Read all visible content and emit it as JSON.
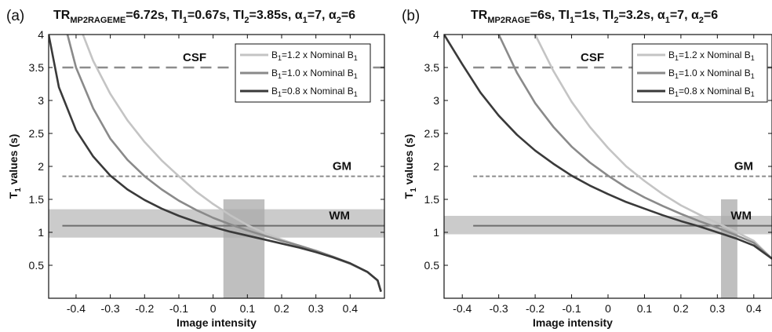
{
  "chart_data": [
    {
      "type": "line",
      "panel": "(a)",
      "title": "TR_MP2RAGEME=6.72s, TI1=0.67s, TI2=3.85s, α1=7, α2=6",
      "title_parts": [
        {
          "t": "TR",
          "sub": false
        },
        {
          "t": "MP2RAGEME",
          "sub": true
        },
        {
          "t": "=6.72s, TI",
          "sub": false
        },
        {
          "t": "1",
          "sub": true
        },
        {
          "t": "=0.67s, TI",
          "sub": false
        },
        {
          "t": "2",
          "sub": true
        },
        {
          "t": "=3.85s, α",
          "sub": false
        },
        {
          "t": "1",
          "sub": true
        },
        {
          "t": "=7, α",
          "sub": false
        },
        {
          "t": "2",
          "sub": true
        },
        {
          "t": "=6",
          "sub": false
        }
      ],
      "xlabel": "Image intensity",
      "ylabel": "T1 values (s)",
      "xlim": [
        -0.48,
        0.5
      ],
      "ylim": [
        0,
        4
      ],
      "xticks": [
        "-0.4",
        "-0.3",
        "-0.2",
        "-0.1",
        "0",
        "0.1",
        "0.2",
        "0.3",
        "0.4"
      ],
      "xtick_values": [
        -0.4,
        -0.3,
        -0.2,
        -0.1,
        0,
        0.1,
        0.2,
        0.3,
        0.4
      ],
      "yticks": [
        "0.5",
        "1",
        "1.5",
        "2",
        "2.5",
        "3",
        "3.5",
        "4"
      ],
      "ytick_values": [
        0.5,
        1,
        1.5,
        2,
        2.5,
        3,
        3.5,
        4
      ],
      "legend_position": "top-right",
      "series": [
        {
          "name": "B1=1.2 x Nominal B1",
          "color": "#c4c4c4",
          "x": [
            -0.38,
            -0.35,
            -0.3,
            -0.25,
            -0.2,
            -0.15,
            -0.1,
            -0.05,
            0,
            0.05,
            0.1,
            0.15,
            0.2,
            0.25,
            0.3,
            0.35,
            0.4,
            0.45,
            0.48,
            0.49
          ],
          "y": [
            4.0,
            3.6,
            3.1,
            2.7,
            2.37,
            2.09,
            1.85,
            1.62,
            1.43,
            1.26,
            1.11,
            0.99,
            0.89,
            0.8,
            0.71,
            0.62,
            0.52,
            0.4,
            0.27,
            0.1
          ]
        },
        {
          "name": "B1=1.0 x Nominal B1",
          "color": "#8a8a8a",
          "x": [
            -0.425,
            -0.4,
            -0.35,
            -0.3,
            -0.25,
            -0.2,
            -0.15,
            -0.1,
            -0.05,
            0,
            0.05,
            0.1,
            0.15,
            0.2,
            0.25,
            0.3,
            0.35,
            0.4,
            0.45,
            0.48,
            0.49
          ],
          "y": [
            4.0,
            3.5,
            2.88,
            2.42,
            2.1,
            1.85,
            1.65,
            1.48,
            1.34,
            1.22,
            1.12,
            1.03,
            0.95,
            0.87,
            0.8,
            0.72,
            0.63,
            0.53,
            0.4,
            0.27,
            0.1
          ]
        },
        {
          "name": "B1=0.8 x Nominal B1",
          "color": "#3a3a3a",
          "x": [
            -0.48,
            -0.45,
            -0.4,
            -0.35,
            -0.3,
            -0.25,
            -0.2,
            -0.15,
            -0.1,
            -0.05,
            0,
            0.05,
            0.1,
            0.15,
            0.2,
            0.25,
            0.3,
            0.35,
            0.4,
            0.45,
            0.48,
            0.49
          ],
          "y": [
            4.0,
            3.2,
            2.55,
            2.15,
            1.86,
            1.65,
            1.49,
            1.36,
            1.25,
            1.16,
            1.08,
            1.01,
            0.95,
            0.89,
            0.83,
            0.77,
            0.7,
            0.62,
            0.53,
            0.4,
            0.27,
            0.1
          ]
        }
      ],
      "reference_lines": [
        {
          "label": "CSF",
          "y": 3.5,
          "x_start": -0.44,
          "style": "dashed",
          "color": "#8c8c8c"
        },
        {
          "label": "GM",
          "y": 1.85,
          "x_start": -0.44,
          "style": "dashed",
          "color": "#8c8c8c"
        },
        {
          "label": "WM",
          "y": 1.1,
          "x_start": -0.44,
          "style": "solid",
          "color": "#6e6e6e"
        }
      ],
      "shaded_bands": [
        {
          "orientation": "horizontal",
          "from": 0.92,
          "to": 1.35
        },
        {
          "orientation": "vertical",
          "from": 0.03,
          "to": 0.15
        }
      ]
    },
    {
      "type": "line",
      "panel": "(b)",
      "title": "TR_MP2RAGE=6s, TI1=1s, TI2=3.2s, α1=7, α2=6",
      "title_parts": [
        {
          "t": "TR",
          "sub": false
        },
        {
          "t": "MP2RAGE",
          "sub": true
        },
        {
          "t": "=6s, TI",
          "sub": false
        },
        {
          "t": "1",
          "sub": true
        },
        {
          "t": "=1s, TI",
          "sub": false
        },
        {
          "t": "2",
          "sub": true
        },
        {
          "t": "=3.2s, α",
          "sub": false
        },
        {
          "t": "1",
          "sub": true
        },
        {
          "t": "=7, α",
          "sub": false
        },
        {
          "t": "2",
          "sub": true
        },
        {
          "t": "=6",
          "sub": false
        }
      ],
      "xlabel": "Image intensity",
      "ylabel": "T1 values (s)",
      "xlim": [
        -0.45,
        0.45
      ],
      "ylim": [
        0,
        4
      ],
      "xticks": [
        "-0.4",
        "-0.3",
        "-0.2",
        "-0.1",
        "0",
        "0.1",
        "0.2",
        "0.3",
        "0.4"
      ],
      "xtick_values": [
        -0.4,
        -0.3,
        -0.2,
        -0.1,
        0,
        0.1,
        0.2,
        0.3,
        0.4
      ],
      "yticks": [
        "0.5",
        "1",
        "1.5",
        "2",
        "2.5",
        "3",
        "3.5",
        "4"
      ],
      "ytick_values": [
        0.5,
        1,
        1.5,
        2,
        2.5,
        3,
        3.5,
        4
      ],
      "legend_position": "top-right",
      "series": [
        {
          "name": "B1=1.2 x Nominal B1",
          "color": "#c4c4c4",
          "x": [
            -0.2,
            -0.15,
            -0.1,
            -0.05,
            0,
            0.05,
            0.1,
            0.15,
            0.2,
            0.25,
            0.3,
            0.35,
            0.4,
            0.45
          ],
          "y": [
            4.0,
            3.45,
            2.98,
            2.6,
            2.28,
            2.0,
            1.78,
            1.58,
            1.41,
            1.27,
            1.14,
            1.01,
            0.87,
            0.6
          ]
        },
        {
          "name": "B1=1.0 x Nominal B1",
          "color": "#8a8a8a",
          "x": [
            -0.3,
            -0.25,
            -0.2,
            -0.15,
            -0.1,
            -0.05,
            0,
            0.05,
            0.1,
            0.15,
            0.2,
            0.25,
            0.3,
            0.35,
            0.4,
            0.45
          ],
          "y": [
            4.0,
            3.42,
            2.96,
            2.6,
            2.3,
            2.06,
            1.86,
            1.68,
            1.53,
            1.4,
            1.28,
            1.17,
            1.07,
            0.96,
            0.84,
            0.6
          ]
        },
        {
          "name": "B1=0.8 x Nominal B1",
          "color": "#3a3a3a",
          "x": [
            -0.45,
            -0.4,
            -0.35,
            -0.3,
            -0.25,
            -0.2,
            -0.15,
            -0.1,
            -0.05,
            0,
            0.05,
            0.1,
            0.15,
            0.2,
            0.25,
            0.3,
            0.35,
            0.4,
            0.45
          ],
          "y": [
            4.0,
            3.55,
            3.12,
            2.77,
            2.48,
            2.24,
            2.04,
            1.86,
            1.71,
            1.58,
            1.46,
            1.36,
            1.26,
            1.17,
            1.09,
            1.0,
            0.91,
            0.8,
            0.6
          ]
        }
      ],
      "reference_lines": [
        {
          "label": "CSF",
          "y": 3.5,
          "x_start": -0.37,
          "style": "dashed",
          "color": "#8c8c8c"
        },
        {
          "label": "GM",
          "y": 1.85,
          "x_start": -0.37,
          "style": "dashed",
          "color": "#8c8c8c"
        },
        {
          "label": "WM",
          "y": 1.1,
          "x_start": -0.37,
          "style": "solid",
          "color": "#6e6e6e"
        }
      ],
      "shaded_bands": [
        {
          "orientation": "horizontal",
          "from": 0.97,
          "to": 1.25
        },
        {
          "orientation": "vertical",
          "from": 0.31,
          "to": 0.355
        }
      ]
    }
  ]
}
